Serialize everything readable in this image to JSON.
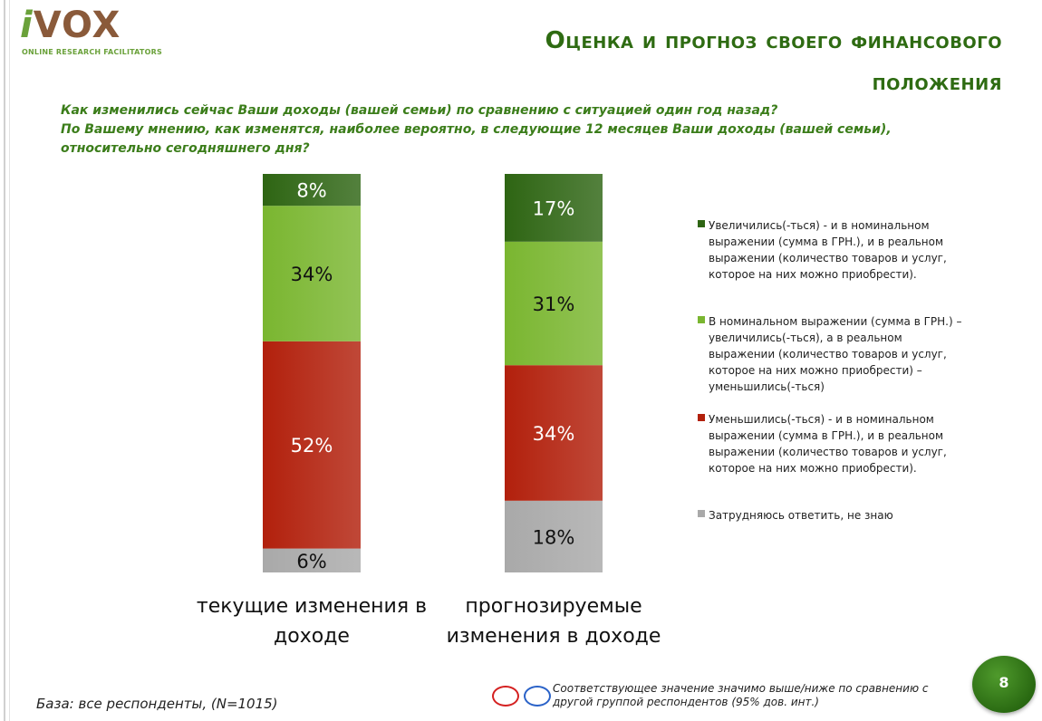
{
  "logo": {
    "brand_i": "i",
    "brand_rest": "VOX",
    "tagline": "ONLINE RESEARCH FACILITATORS"
  },
  "title": {
    "line1": "Оценка и прогноз своего финансового",
    "line2": "положения"
  },
  "questions": {
    "q1": "Как изменились сейчас Ваши доходы (вашей семьи) по сравнению с ситуацией один год назад?",
    "q2": "По Вашему мнению, как изменятся, наиболее вероятно, в следующие 12 месяцев Ваши доходы (вашей семьи), относительно сегодняшнего дня?"
  },
  "chart_data": {
    "type": "bar",
    "stacked": true,
    "percent_stacked": true,
    "categories": [
      [
        "текущие изменения в",
        "доходе"
      ],
      [
        "прогнозируемые",
        "изменения в доходе"
      ]
    ],
    "series": [
      {
        "name": "Затрудняюсь ответить, не знаю",
        "color": "#a9a9a9",
        "values": [
          6,
          18
        ]
      },
      {
        "name": "Уменьшились(-ться) - и в номинальном выражении (сумма в ГРН.), и в реальном выражении (количество товаров и услуг, которое на них можно приобрести).",
        "color": "#b2200c",
        "values": [
          52,
          34
        ]
      },
      {
        "name": " В номинальном выражении (сумма в ГРН.) – увеличились(-ться), а в реальном выражении (количество товаров и услуг, которое на них можно приобрести) – уменьшились(-ться)",
        "color": "#7ab630",
        "values": [
          34,
          31
        ]
      },
      {
        "name": "Увеличились(-ться) - и в номинальном выражении (сумма в ГРН.), и в реальном выражении (количество товаров и услуг, которое на них можно приобрести).",
        "color": "#2e6513",
        "values": [
          8,
          17
        ]
      }
    ],
    "data_labels": [
      [
        "6%",
        "52%",
        "34%",
        "8%"
      ],
      [
        "18%",
        "34%",
        "31%",
        "17%"
      ]
    ],
    "legend_position": "right"
  },
  "legend": {
    "items": [
      {
        "text": "Увеличились(-ться) - и в номинальном выражении (сумма в ГРН.), и в реальном выражении (количество товаров и услуг, которое на них можно приобрести).",
        "color": "#2e6513"
      },
      {
        "text": " В номинальном выражении (сумма в ГРН.) – увеличились(-ться), а в реальном выражении (количество товаров и услуг, которое на них можно приобрести) – уменьшились(-ться)",
        "color": "#7ab630"
      },
      {
        "text": "Уменьшились(-ться) - и в номинальном выражении (сумма в ГРН.), и в реальном выражении (количество товаров и услуг, которое на них можно приобрести).",
        "color": "#b2200c"
      },
      {
        "text": "Затрудняюсь ответить, не знаю",
        "color": "#a9a9a9"
      }
    ]
  },
  "footer": {
    "base": "База: все респонденты, (N=1015)",
    "significance": "Соответствующее значение значимо выше/ниже по сравнению с другой группой респондентов (95% дов. инт.)",
    "page_number": "8"
  }
}
